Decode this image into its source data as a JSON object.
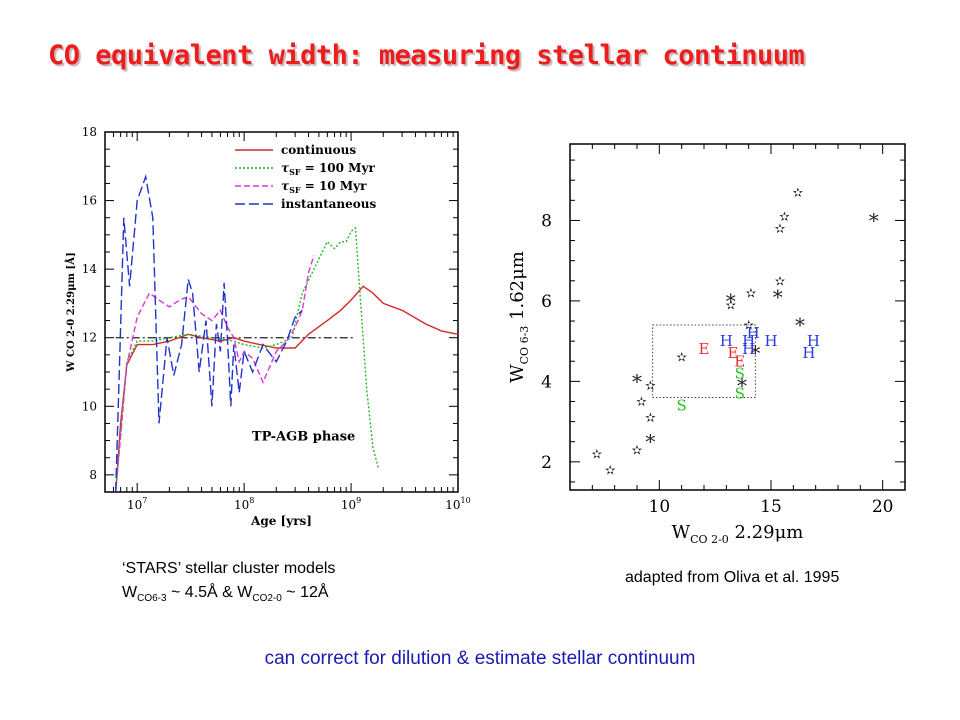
{
  "slide": {
    "title": "CO equivalent width: measuring stellar continuum",
    "left_caption_line1": "‘STARS’ stellar cluster models",
    "left_caption_w1": "W",
    "left_caption_sub1": "CO6-3",
    "left_caption_mid": " ~ 4.5Å & W",
    "left_caption_sub2": "CO2-0",
    "left_caption_end": " ~ 12Å",
    "right_caption": "adapted from Oliva et al. 1995",
    "bottom_note": "can correct for dilution & estimate stellar continuum"
  },
  "chart_data": [
    {
      "type": "line",
      "xlabel": "Age [yrs]",
      "ylabel": "W CO 2-0 2.29μm [Å]",
      "xscale": "log",
      "xlim": [
        5000000,
        10000000000
      ],
      "ylim": [
        7.5,
        18
      ],
      "x_ticklabels": [
        "10^7",
        "10^8",
        "10^9",
        "10^10"
      ],
      "y_ticks": [
        8,
        10,
        12,
        14,
        16,
        18
      ],
      "legend_position": "top-right",
      "annotation": "TP-AGB phase",
      "series": [
        {
          "name": "continuous",
          "color": "#d42a2a",
          "dash": "",
          "x": [
            6300000.0,
            7000000.0,
            8000000.0,
            10000000.0,
            14000000.0,
            20000000.0,
            30000000.0,
            40000000.0,
            60000000.0,
            80000000.0,
            100000000.0,
            140000000.0,
            200000000.0,
            300000000.0,
            400000000.0,
            600000000.0,
            800000000.0,
            1000000000.0,
            1300000000.0,
            1600000000.0,
            2000000000.0,
            3000000000.0,
            5000000000.0,
            7000000000.0,
            10000000000.0
          ],
          "y": [
            7.5,
            9.5,
            11.2,
            11.8,
            11.8,
            11.9,
            12.1,
            12.0,
            11.9,
            12.0,
            11.9,
            11.8,
            11.7,
            11.7,
            12.1,
            12.5,
            12.8,
            13.1,
            13.5,
            13.3,
            13.0,
            12.8,
            12.4,
            12.2,
            12.1
          ]
        },
        {
          "name": "τSF = 100 Myr",
          "color": "#22b822",
          "dash": "2,2",
          "x": [
            6300000.0,
            8000000.0,
            10000000.0,
            14000000.0,
            20000000.0,
            30000000.0,
            50000000.0,
            80000000.0,
            100000000.0,
            150000000.0,
            200000000.0,
            280000000.0,
            350000000.0,
            500000000.0,
            600000000.0,
            700000000.0,
            800000000.0,
            900000000.0,
            1000000000.0,
            1100000000.0,
            1200000000.0,
            1400000000.0,
            1600000000.0,
            1800000000.0
          ],
          "y": [
            7.5,
            11.3,
            11.9,
            11.9,
            12.0,
            12.1,
            12.0,
            11.9,
            11.8,
            11.7,
            11.8,
            12.0,
            13.3,
            14.3,
            14.8,
            14.6,
            14.8,
            14.8,
            15.1,
            15.2,
            13.5,
            10.5,
            8.8,
            8.2
          ]
        },
        {
          "name": "τSF = 10 Myr",
          "color": "#d838d8",
          "dash": "6,3",
          "x": [
            6500000.0,
            8000000.0,
            10000000.0,
            13000000.0,
            16000000.0,
            20000000.0,
            25000000.0,
            30000000.0,
            40000000.0,
            50000000.0,
            60000000.0,
            70000000.0,
            80000000.0,
            90000000.0,
            100000000.0,
            120000000.0,
            150000000.0,
            200000000.0,
            250000000.0,
            300000000.0,
            350000000.0,
            400000000.0,
            450000000.0
          ],
          "y": [
            8.0,
            11.2,
            12.6,
            13.3,
            13.1,
            12.9,
            13.1,
            13.2,
            12.7,
            12.5,
            12.8,
            12.3,
            12.0,
            11.3,
            11.6,
            11.4,
            10.7,
            11.6,
            11.9,
            12.3,
            12.8,
            13.9,
            14.4
          ]
        },
        {
          "name": "instantaneous",
          "color": "#2233cc",
          "dash": "10,4",
          "x": [
            6300000.0,
            6800000.0,
            7500000.0,
            8500000.0,
            10000000.0,
            12000000.0,
            14000000.0,
            16000000.0,
            19000000.0,
            22000000.0,
            26000000.0,
            30000000.0,
            33000000.0,
            38000000.0,
            44000000.0,
            50000000.0,
            55000000.0,
            60000000.0,
            65000000.0,
            70000000.0,
            75000000.0,
            80000000.0,
            90000000.0,
            100000000.0,
            120000000.0,
            150000000.0,
            200000000.0,
            250000000.0,
            300000000.0,
            350000000.0
          ],
          "y": [
            7.5,
            11.0,
            15.5,
            13.5,
            16.0,
            16.7,
            15.5,
            9.5,
            12.0,
            10.9,
            11.8,
            13.7,
            13.3,
            11.0,
            12.5,
            10.0,
            12.4,
            11.6,
            13.6,
            11.9,
            10.0,
            11.8,
            10.4,
            11.6,
            11.0,
            11.8,
            11.3,
            11.9,
            12.6,
            12.8
          ]
        }
      ],
      "reference_line": {
        "y": 12,
        "x_range": [
          6300000.0,
          1050000000.0
        ],
        "style": "dash-dot"
      }
    },
    {
      "type": "scatter",
      "xlabel": "W CO 2-0 2.29μm",
      "ylabel": "W CO 6-3 1.62μm",
      "xlim": [
        6,
        21
      ],
      "ylim": [
        1.3,
        9.9
      ],
      "x_ticks": [
        10,
        15,
        20
      ],
      "y_ticks": [
        2,
        4,
        6,
        8
      ],
      "box": {
        "x": [
          9.7,
          14.3
        ],
        "y": [
          3.6,
          5.4
        ]
      },
      "points": [
        {
          "x": 7.2,
          "y": 2.2,
          "marker": "✫",
          "color": "#222222"
        },
        {
          "x": 7.8,
          "y": 1.8,
          "marker": "✫",
          "color": "#222222"
        },
        {
          "x": 9.0,
          "y": 2.3,
          "marker": "✫",
          "color": "#222222"
        },
        {
          "x": 9.6,
          "y": 2.5,
          "marker": "*",
          "color": "#222222"
        },
        {
          "x": 9.6,
          "y": 3.1,
          "marker": "✫",
          "color": "#222222"
        },
        {
          "x": 9.2,
          "y": 3.5,
          "marker": "✫",
          "color": "#222222"
        },
        {
          "x": 9.0,
          "y": 4.0,
          "marker": "*",
          "color": "#222222"
        },
        {
          "x": 9.6,
          "y": 3.9,
          "marker": "✫",
          "color": "#222222"
        },
        {
          "x": 11.0,
          "y": 4.6,
          "marker": "✫",
          "color": "#222222"
        },
        {
          "x": 13.2,
          "y": 5.9,
          "marker": "✫",
          "color": "#222222"
        },
        {
          "x": 13.2,
          "y": 6.0,
          "marker": "*",
          "color": "#222222"
        },
        {
          "x": 14.1,
          "y": 6.2,
          "marker": "✫",
          "color": "#222222"
        },
        {
          "x": 14.0,
          "y": 5.4,
          "marker": "✫",
          "color": "#222222"
        },
        {
          "x": 14.3,
          "y": 4.7,
          "marker": "*",
          "color": "#222222"
        },
        {
          "x": 13.7,
          "y": 3.9,
          "marker": "*",
          "color": "#222222"
        },
        {
          "x": 15.4,
          "y": 6.5,
          "marker": "✫",
          "color": "#222222"
        },
        {
          "x": 15.3,
          "y": 6.1,
          "marker": "*",
          "color": "#222222"
        },
        {
          "x": 15.4,
          "y": 7.8,
          "marker": "✫",
          "color": "#222222"
        },
        {
          "x": 15.6,
          "y": 8.1,
          "marker": "✫",
          "color": "#222222"
        },
        {
          "x": 16.2,
          "y": 8.7,
          "marker": "✫",
          "color": "#222222"
        },
        {
          "x": 16.3,
          "y": 5.4,
          "marker": "*",
          "color": "#222222"
        },
        {
          "x": 19.6,
          "y": 8.0,
          "marker": "*",
          "color": "#222222"
        },
        {
          "x": 12.0,
          "y": 4.8,
          "marker": "E",
          "color": "#e63030"
        },
        {
          "x": 13.3,
          "y": 4.7,
          "marker": "E",
          "color": "#e63030"
        },
        {
          "x": 13.6,
          "y": 4.5,
          "marker": "E",
          "color": "#e63030"
        },
        {
          "x": 13.6,
          "y": 4.2,
          "marker": "S",
          "color": "#22c022"
        },
        {
          "x": 13.6,
          "y": 3.7,
          "marker": "S",
          "color": "#22c022"
        },
        {
          "x": 11.0,
          "y": 3.4,
          "marker": "S",
          "color": "#22c022"
        },
        {
          "x": 13.0,
          "y": 5.0,
          "marker": "H",
          "color": "#2a3ae0"
        },
        {
          "x": 14.0,
          "y": 5.0,
          "marker": "H",
          "color": "#2a3ae0"
        },
        {
          "x": 14.2,
          "y": 5.2,
          "marker": "H",
          "color": "#2a3ae0"
        },
        {
          "x": 14.0,
          "y": 4.8,
          "marker": "H",
          "color": "#2a3ae0"
        },
        {
          "x": 15.0,
          "y": 5.0,
          "marker": "H",
          "color": "#2a3ae0"
        },
        {
          "x": 16.9,
          "y": 5.0,
          "marker": "H",
          "color": "#2a3ae0"
        },
        {
          "x": 16.7,
          "y": 4.7,
          "marker": "H",
          "color": "#2a3ae0"
        }
      ]
    }
  ]
}
